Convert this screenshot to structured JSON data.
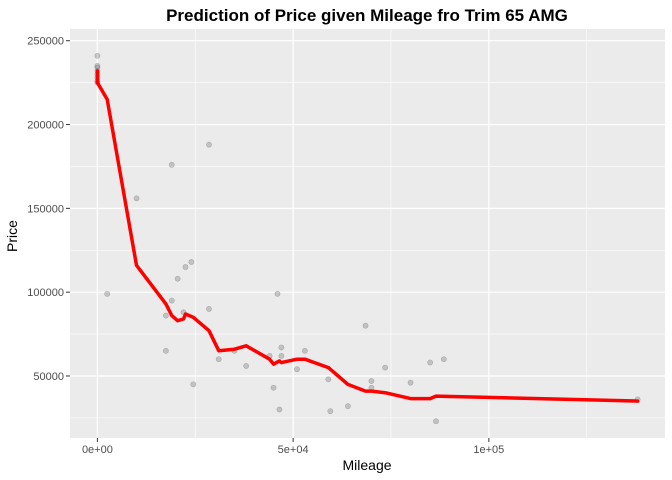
{
  "chart_data": {
    "type": "scatter",
    "title": "Prediction of Price given Mileage fro Trim 65 AMG",
    "xlabel": "Mileage",
    "ylabel": "Price",
    "xlim": [
      -7000,
      145000
    ],
    "ylim": [
      13000,
      257000
    ],
    "grid": true,
    "legend": "none",
    "x_ticks": [
      {
        "value": 0,
        "label": "0e+00"
      },
      {
        "value": 50000,
        "label": "5e+04"
      },
      {
        "value": 100000,
        "label": "1e+05"
      }
    ],
    "y_ticks": [
      {
        "value": 50000,
        "label": "50000"
      },
      {
        "value": 100000,
        "label": "100000"
      },
      {
        "value": 150000,
        "label": "150000"
      },
      {
        "value": 200000,
        "label": "200000"
      },
      {
        "value": 250000,
        "label": "250000"
      }
    ],
    "colors": {
      "panel": "#ebebeb",
      "grid": "#ffffff",
      "points": "#595959",
      "line": "#ff0000"
    },
    "series": [
      {
        "type": "scatter",
        "points": [
          [
            0,
            241000
          ],
          [
            0,
            235000
          ],
          [
            0,
            234000
          ],
          [
            0,
            232000
          ],
          [
            0,
            230000
          ],
          [
            0,
            228000
          ],
          [
            0,
            226000
          ],
          [
            0,
            225000
          ],
          [
            2500,
            99000
          ],
          [
            10000,
            156000
          ],
          [
            17500,
            86000
          ],
          [
            17500,
            65000
          ],
          [
            19000,
            95000
          ],
          [
            19000,
            176000
          ],
          [
            20500,
            108000
          ],
          [
            22000,
            88000
          ],
          [
            22500,
            115000
          ],
          [
            24000,
            118000
          ],
          [
            24500,
            45000
          ],
          [
            28500,
            188000
          ],
          [
            28500,
            90000
          ],
          [
            31000,
            60000
          ],
          [
            35000,
            65000
          ],
          [
            38000,
            56000
          ],
          [
            44000,
            62000
          ],
          [
            45000,
            43000
          ],
          [
            46000,
            99000
          ],
          [
            46500,
            30000
          ],
          [
            47000,
            67000
          ],
          [
            47000,
            62000
          ],
          [
            51000,
            54000
          ],
          [
            53000,
            65000
          ],
          [
            59000,
            48000
          ],
          [
            59500,
            29000
          ],
          [
            64000,
            32000
          ],
          [
            68500,
            80000
          ],
          [
            70000,
            47000
          ],
          [
            70000,
            43000
          ],
          [
            73500,
            55000
          ],
          [
            80000,
            46000
          ],
          [
            85000,
            58000
          ],
          [
            86500,
            23000
          ],
          [
            88500,
            60000
          ],
          [
            138000,
            36000
          ]
        ]
      },
      {
        "type": "line",
        "points": [
          [
            0,
            232000
          ],
          [
            0,
            225000
          ],
          [
            2500,
            215000
          ],
          [
            10000,
            116000
          ],
          [
            17500,
            93000
          ],
          [
            19000,
            86000
          ],
          [
            20500,
            83000
          ],
          [
            22000,
            84000
          ],
          [
            22500,
            87000
          ],
          [
            24500,
            85000
          ],
          [
            28500,
            77000
          ],
          [
            31000,
            65000
          ],
          [
            35000,
            66000
          ],
          [
            38000,
            68000
          ],
          [
            44000,
            60000
          ],
          [
            45000,
            57000
          ],
          [
            46500,
            59000
          ],
          [
            47000,
            58000
          ],
          [
            51000,
            60000
          ],
          [
            53000,
            60000
          ],
          [
            59000,
            55000
          ],
          [
            64000,
            45000
          ],
          [
            68500,
            41000
          ],
          [
            70000,
            41000
          ],
          [
            73500,
            40000
          ],
          [
            80000,
            36500
          ],
          [
            85000,
            36500
          ],
          [
            86500,
            38000
          ],
          [
            138000,
            35000
          ]
        ]
      }
    ]
  }
}
